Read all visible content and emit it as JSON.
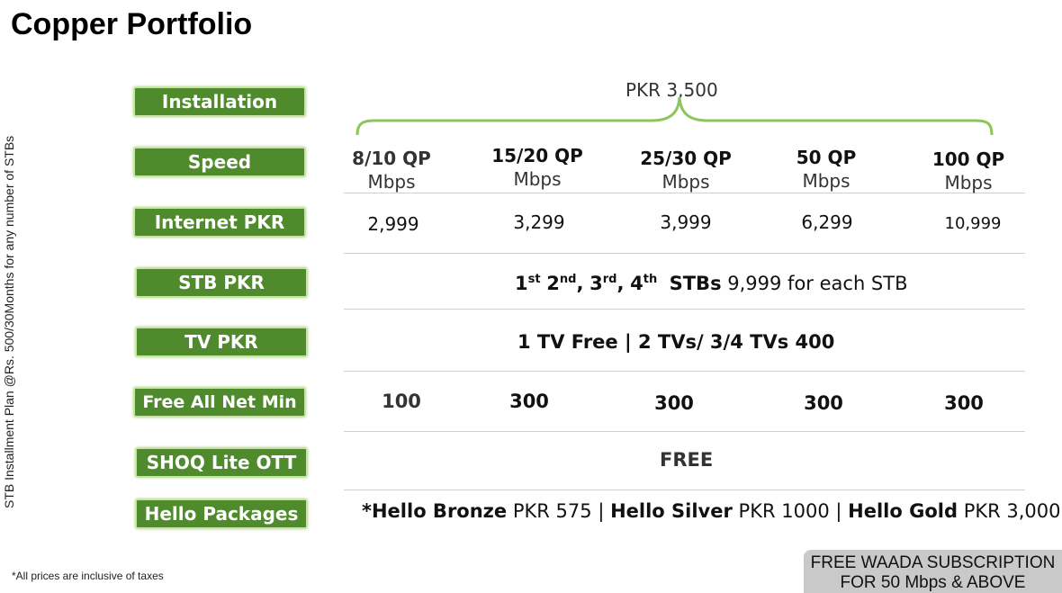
{
  "page_title": "Copper Portfolio",
  "side_note": "STB Installment Plan @Rs. 500/30Months for any number of STBs",
  "labels": {
    "installation": "Installation",
    "speed": "Speed",
    "internet": "Internet PKR",
    "stb": "STB PKR",
    "tv": "TV PKR",
    "free_min": "Free All Net Min",
    "ott": "SHOQ Lite OTT",
    "hello": "Hello Packages"
  },
  "installation_price": "PKR 3,500",
  "plans": [
    {
      "qp": "8/10 QP",
      "unit": "Mbps",
      "price": "2,999",
      "minutes": "100"
    },
    {
      "qp": "15/20 QP",
      "unit": "Mbps",
      "price": "3,299",
      "minutes": "300"
    },
    {
      "qp": "25/30 QP",
      "unit": "Mbps",
      "price": "3,999",
      "minutes": "300"
    },
    {
      "qp": "50 QP",
      "unit": "Mbps",
      "price": "6,299",
      "minutes": "300"
    },
    {
      "qp": "100 QP",
      "unit": "Mbps",
      "price": "10,999",
      "minutes": "300"
    }
  ],
  "stb": {
    "n1": "1",
    "s1": "st",
    "n2": "2",
    "s2": "nd",
    "n3": "3",
    "s3": "rd",
    "n4": "4",
    "s4": "th",
    "stbs": "STBs",
    "price_text": "9,999 for each STB"
  },
  "tv": {
    "one": "1 TV Free",
    "sep": "|",
    "multi": "2 TVs/ 3/4 TVs",
    "price": "400"
  },
  "ott_value": "FREE",
  "hello": {
    "bronze_label": "*Hello Bronze",
    "bronze_price": "PKR 575",
    "silver_label": "Hello Silver",
    "silver_price": "PKR 1000",
    "gold_label": "Hello Gold",
    "gold_price": "PKR 3,000",
    "sep": "|"
  },
  "tax_note": "*All prices are inclusive of taxes",
  "promo": {
    "line1": "FREE WAADA SUBSCRIPTION",
    "line2": "FOR 50 Mbps & ABOVE"
  },
  "colors": {
    "label_bg": "#4f8a2d",
    "label_border": "#c8e4a5",
    "brace": "#8cc55a",
    "promo_bg": "#c9c9c9"
  }
}
